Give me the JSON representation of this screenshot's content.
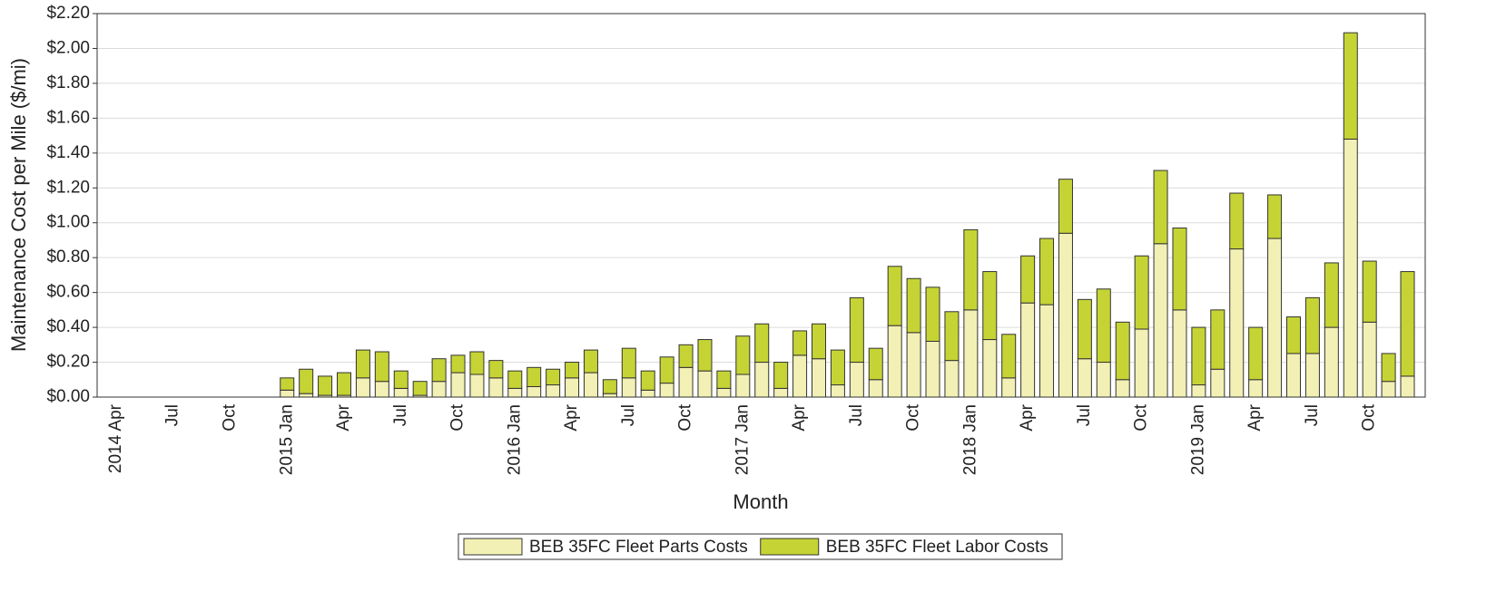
{
  "chart_data": {
    "type": "stacked_bar",
    "xlabel": "Month",
    "ylabel": "Maintenance Cost per Mile ($/mi)",
    "categories": [
      "2014 Apr",
      null,
      null,
      "Jul",
      null,
      null,
      "Oct",
      null,
      null,
      "2015 Jan",
      null,
      null,
      "Apr",
      null,
      null,
      "Jul",
      null,
      null,
      "Oct",
      null,
      null,
      "2016 Jan",
      null,
      null,
      "Apr",
      null,
      null,
      "Jul",
      null,
      null,
      "Oct",
      null,
      null,
      "2017 Jan",
      null,
      null,
      "Apr",
      null,
      null,
      "Jul",
      null,
      null,
      "Oct",
      null,
      null,
      "2018 Jan",
      null,
      null,
      "Apr",
      null,
      null,
      "Jul",
      null,
      null,
      "Oct",
      null,
      null,
      "2019 Jan",
      null,
      null,
      "Apr",
      null,
      null,
      "Jul",
      null,
      null,
      "Oct",
      null,
      null
    ],
    "series": [
      {
        "name": "BEB 35FC Fleet Parts Costs",
        "color": "#f2f0b4",
        "values": [
          null,
          null,
          null,
          null,
          null,
          null,
          null,
          null,
          null,
          0.04,
          0.02,
          0.01,
          0.01,
          0.11,
          0.09,
          0.05,
          0.01,
          0.09,
          0.14,
          0.13,
          0.11,
          0.05,
          0.06,
          0.07,
          0.11,
          0.14,
          0.02,
          0.11,
          0.04,
          0.08,
          0.17,
          0.15,
          0.05,
          0.13,
          0.2,
          0.05,
          0.24,
          0.22,
          0.07,
          0.2,
          0.1,
          0.41,
          0.37,
          0.32,
          0.21,
          0.5,
          0.33,
          0.11,
          0.54,
          0.53,
          0.94,
          0.22,
          0.2,
          0.1,
          0.39,
          0.88,
          0.5,
          0.07,
          0.16,
          0.85,
          0.1,
          0.91,
          0.25,
          0.25,
          0.4,
          1.48,
          0.43,
          0.09,
          0.12
        ]
      },
      {
        "name": "BEB 35FC Fleet Labor Costs",
        "color": "#c5d434",
        "values": [
          null,
          null,
          null,
          null,
          null,
          null,
          null,
          null,
          null,
          0.07,
          0.14,
          0.11,
          0.13,
          0.16,
          0.17,
          0.1,
          0.08,
          0.13,
          0.1,
          0.13,
          0.1,
          0.1,
          0.11,
          0.09,
          0.09,
          0.13,
          0.08,
          0.17,
          0.11,
          0.15,
          0.13,
          0.18,
          0.1,
          0.22,
          0.22,
          0.15,
          0.14,
          0.2,
          0.2,
          0.37,
          0.18,
          0.34,
          0.31,
          0.31,
          0.28,
          0.46,
          0.39,
          0.25,
          0.27,
          0.38,
          0.31,
          0.34,
          0.42,
          0.33,
          0.42,
          0.42,
          0.47,
          0.33,
          0.34,
          0.32,
          0.3,
          0.25,
          0.21,
          0.32,
          0.37,
          0.61,
          0.35,
          0.16,
          0.6
        ]
      }
    ],
    "ylim": [
      0,
      2.2
    ],
    "yticks": [
      {
        "value": 0,
        "label": "$0.00"
      },
      {
        "value": 0.2,
        "label": "$0.20"
      },
      {
        "value": 0.4,
        "label": "$0.40"
      },
      {
        "value": 0.6,
        "label": "$0.60"
      },
      {
        "value": 0.8,
        "label": "$0.80"
      },
      {
        "value": 1.0,
        "label": "$1.00"
      },
      {
        "value": 1.2,
        "label": "$1.20"
      },
      {
        "value": 1.4,
        "label": "$1.40"
      },
      {
        "value": 1.6,
        "label": "$1.60"
      },
      {
        "value": 1.8,
        "label": "$1.80"
      },
      {
        "value": 2.0,
        "label": "$2.00"
      },
      {
        "value": 2.2,
        "label": "$2.20"
      }
    ],
    "grid": true,
    "legend": "bottom"
  }
}
